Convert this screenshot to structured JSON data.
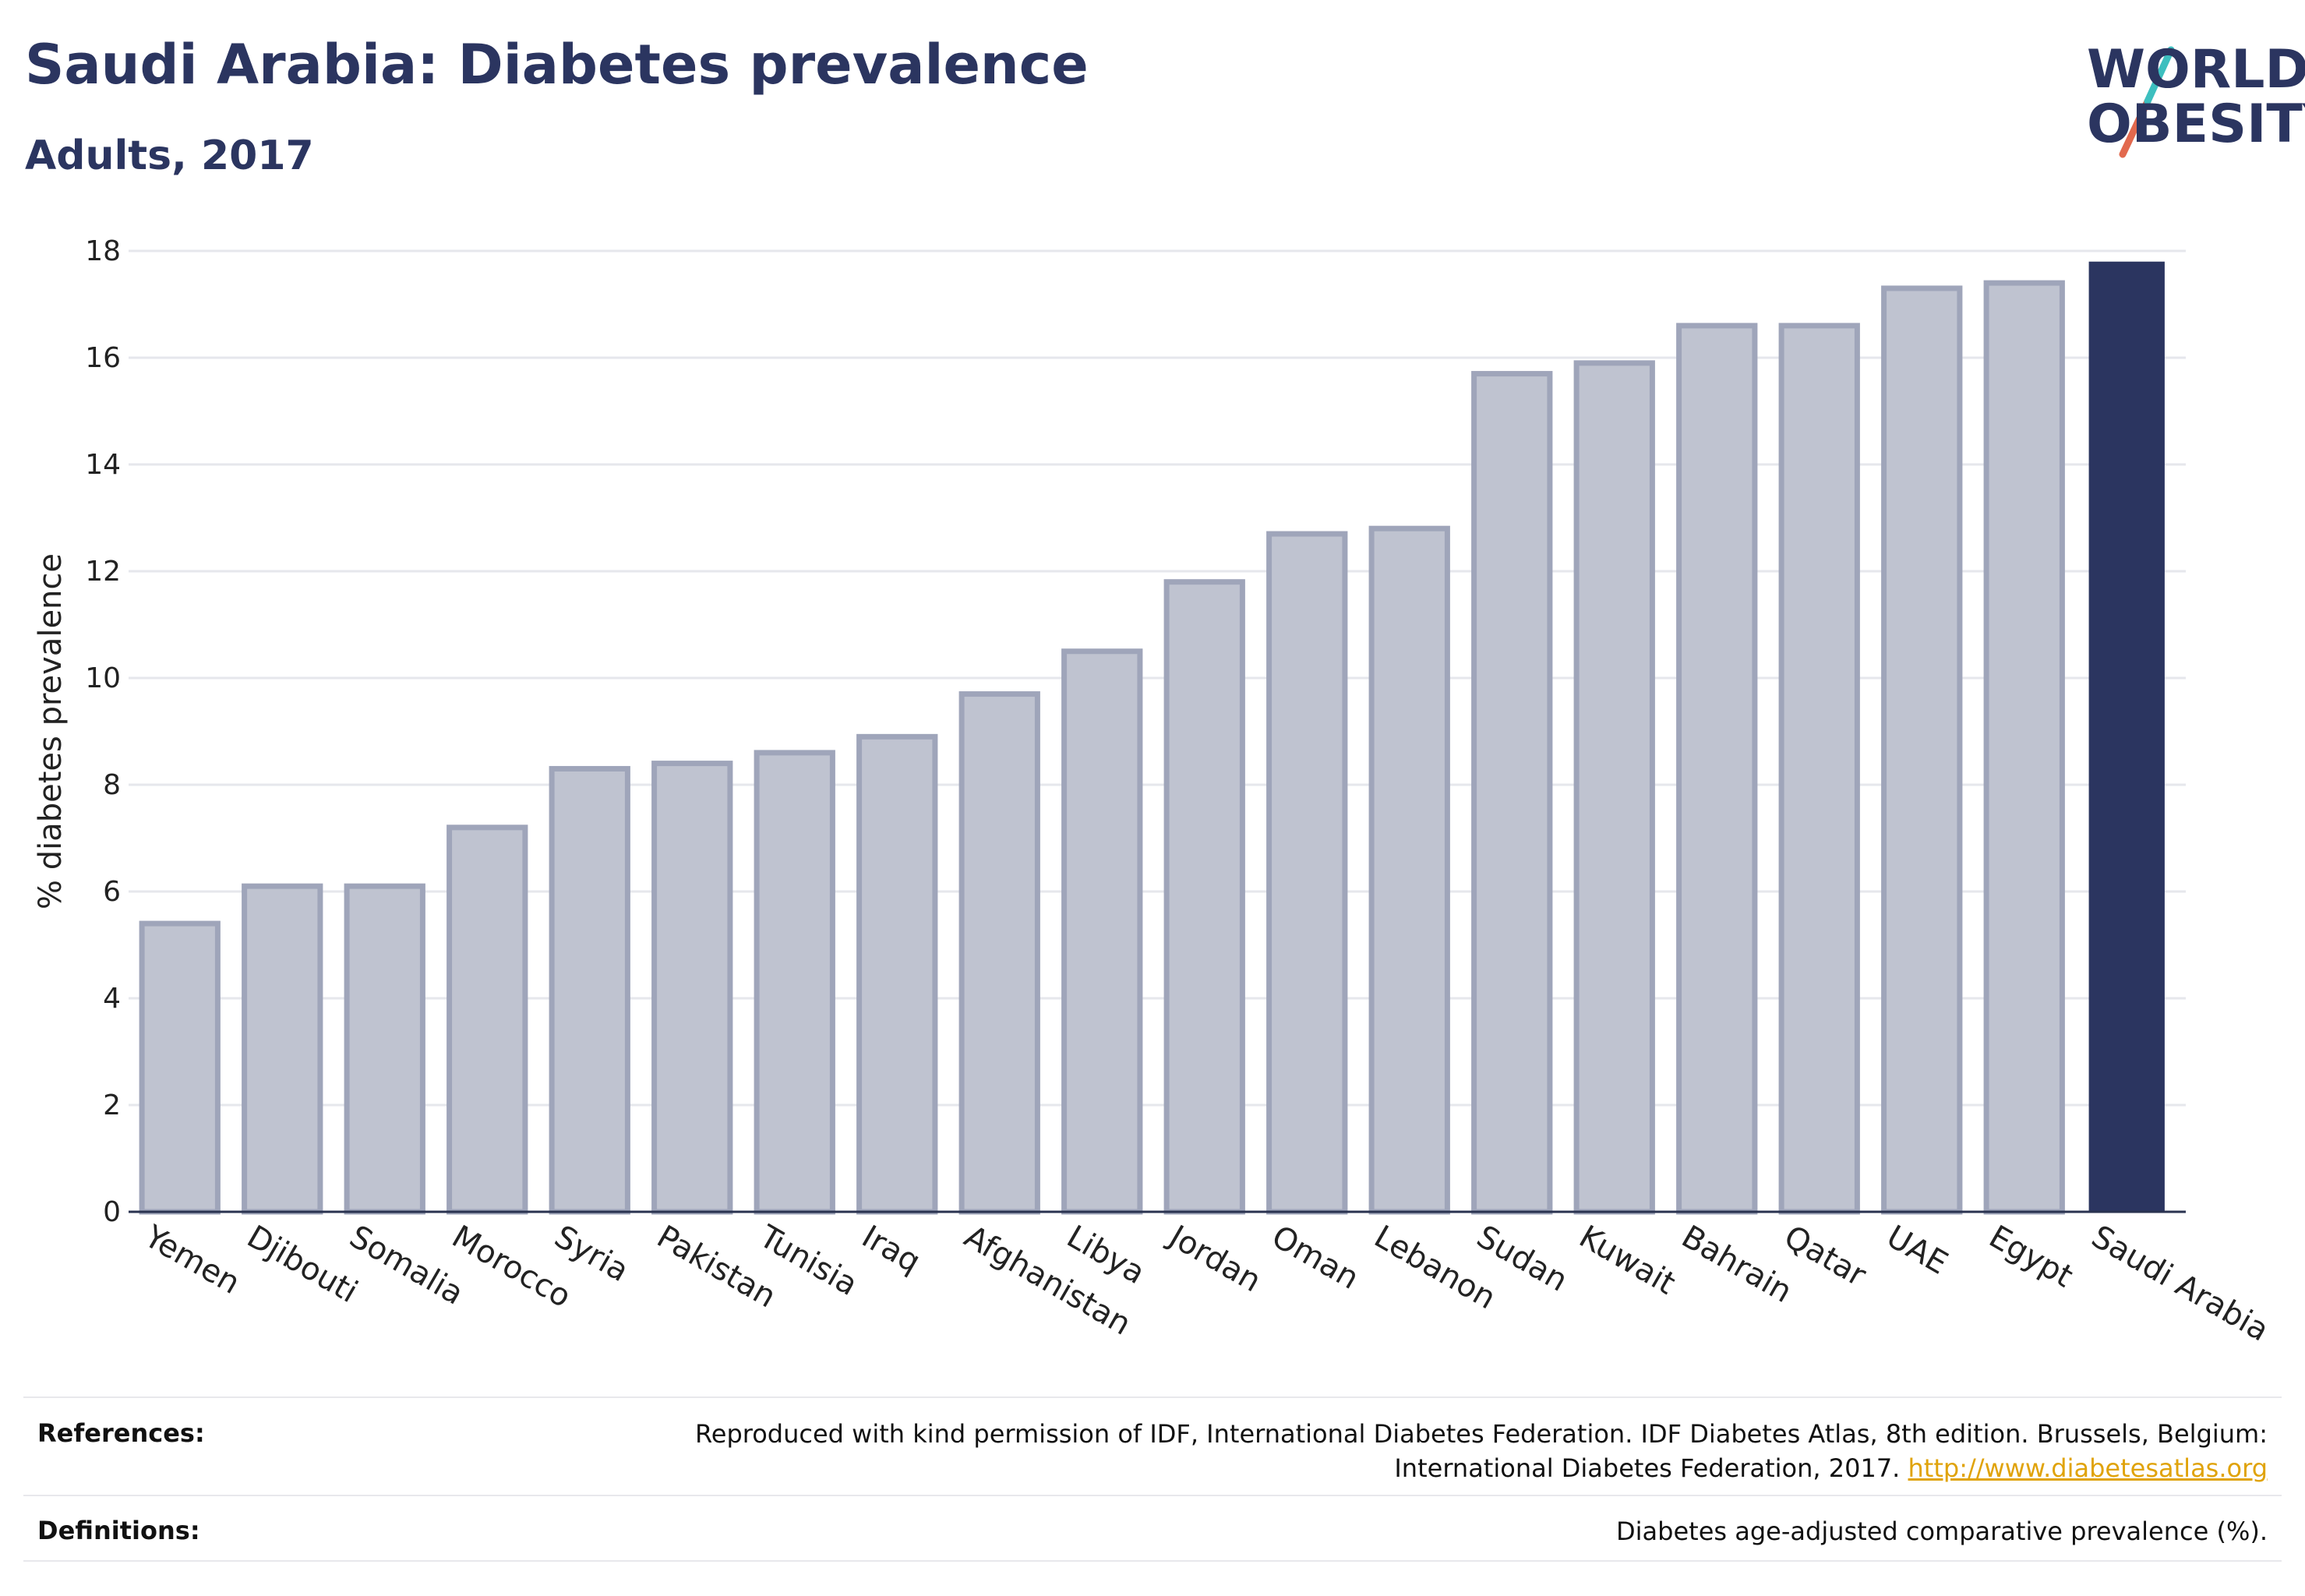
{
  "header": {
    "title": "Saudi Arabia: Diabetes prevalence",
    "subtitle": "Adults, 2017"
  },
  "logo": {
    "line1": "WORLD",
    "line2": "OBESITY",
    "slash_colors": [
      "#3dbfbf",
      "#e2694e"
    ]
  },
  "colors": {
    "highlight_bar": "#2b3560",
    "other_bar_fill": "#bfc3d0",
    "other_bar_stroke": "#9fa5ba",
    "axis": "#2a3350",
    "grid": "#e6e7ec"
  },
  "chart_data": {
    "type": "bar",
    "title": "Saudi Arabia: Diabetes prevalence",
    "subtitle": "Adults, 2017",
    "xlabel": "",
    "ylabel": "% diabetes prevalence",
    "ylim": [
      0,
      18
    ],
    "yticks": [
      0,
      2,
      4,
      6,
      8,
      10,
      12,
      14,
      16,
      18
    ],
    "grid": true,
    "highlight": "Saudi Arabia",
    "categories": [
      "Yemen",
      "Djibouti",
      "Somalia",
      "Morocco",
      "Syria",
      "Pakistan",
      "Tunisia",
      "Iraq",
      "Afghanistan",
      "Libya",
      "Jordan",
      "Oman",
      "Lebanon",
      "Sudan",
      "Kuwait",
      "Bahrain",
      "Qatar",
      "UAE",
      "Egypt",
      "Saudi Arabia"
    ],
    "values": [
      5.4,
      6.1,
      6.1,
      7.2,
      8.3,
      8.4,
      8.6,
      8.9,
      9.7,
      10.5,
      11.8,
      12.7,
      12.8,
      15.7,
      15.9,
      16.6,
      16.6,
      17.3,
      17.4,
      17.8
    ]
  },
  "footer": {
    "references_label": "References:",
    "references_text_1": "Reproduced with kind permission of IDF, International Diabetes Federation. IDF Diabetes Atlas, 8th edition. Brussels, Belgium:",
    "references_text_2": "International Diabetes Federation, 2017.",
    "references_link": "http://www.diabetesatlas.org",
    "definitions_label": "Definitions:",
    "definitions_text": "Diabetes age-adjusted comparative prevalence (%)."
  }
}
